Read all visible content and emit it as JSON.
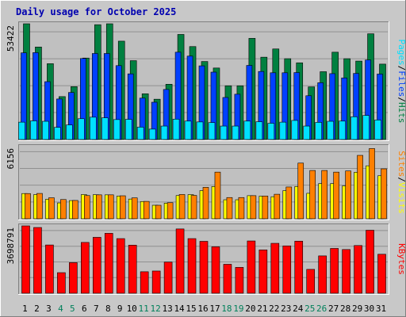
{
  "chart_data": [
    {
      "type": "bar",
      "title": "Daily usage for October 2025",
      "categories": [
        "1",
        "2",
        "3",
        "4",
        "5",
        "6",
        "7",
        "8",
        "9",
        "10",
        "11",
        "12",
        "13",
        "14",
        "15",
        "16",
        "17",
        "18",
        "19",
        "20",
        "21",
        "22",
        "23",
        "24",
        "25",
        "26",
        "27",
        "28",
        "29",
        "30",
        "31"
      ],
      "weekend_days": [
        "4",
        "5",
        "11",
        "12",
        "18",
        "19",
        "25",
        "26"
      ],
      "ymax_label": "53422",
      "ymax": 53422,
      "right_label_parts": [
        "Pages",
        "/",
        "Files",
        "/",
        "Hits"
      ],
      "series": [
        {
          "name": "Hits",
          "color": "#008040",
          "values": [
            53422,
            42700,
            35000,
            19800,
            24400,
            37600,
            53000,
            53422,
            45400,
            36400,
            21100,
            18600,
            25500,
            48500,
            42900,
            36000,
            33000,
            24800,
            24800,
            46700,
            38000,
            41800,
            37300,
            35400,
            24300,
            31300,
            40300,
            37300,
            36200,
            48800,
            34800
          ]
        },
        {
          "name": "Files",
          "color": "#0040ff",
          "values": [
            40000,
            40100,
            26700,
            18700,
            21700,
            37400,
            39700,
            39700,
            34100,
            30300,
            19100,
            17200,
            23100,
            40300,
            38500,
            34000,
            31100,
            19400,
            20900,
            34200,
            31400,
            30800,
            30800,
            30900,
            20200,
            26200,
            30400,
            28400,
            30500,
            36700,
            30200
          ]
        },
        {
          "name": "Pages",
          "color": "#00e0ff",
          "values": [
            8000,
            8600,
            8400,
            5600,
            6700,
            9600,
            10300,
            10000,
            9200,
            9300,
            5700,
            4800,
            6200,
            9400,
            8500,
            8100,
            7800,
            6200,
            6200,
            8500,
            8200,
            7500,
            8000,
            8800,
            6200,
            7900,
            8400,
            8500,
            10500,
            11100,
            9000
          ]
        }
      ]
    },
    {
      "type": "bar",
      "ymax_label": "6156",
      "ymax": 6156,
      "right_label_parts": [
        "Sites",
        "/",
        "Visits"
      ],
      "series": [
        {
          "name": "Visits",
          "color": "#ffff00",
          "values": [
            2150,
            2060,
            1660,
            1350,
            1550,
            2060,
            2050,
            2040,
            1930,
            1680,
            1470,
            1150,
            1330,
            1980,
            2060,
            2400,
            2750,
            1620,
            1620,
            1970,
            1930,
            1880,
            2400,
            2750,
            2170,
            3000,
            3000,
            2800,
            3970,
            4520,
            3670
          ]
        },
        {
          "name": "Sites",
          "color": "#ff8000",
          "values": [
            2150,
            2160,
            1790,
            1640,
            1560,
            1980,
            2040,
            2040,
            1960,
            1780,
            1480,
            1150,
            1370,
            2070,
            1990,
            2680,
            3980,
            1810,
            1810,
            1970,
            1940,
            2090,
            2710,
            4750,
            4120,
            4120,
            3980,
            4080,
            5410,
            5990,
            4260
          ]
        }
      ]
    },
    {
      "type": "bar",
      "ymax_label": "3698791",
      "ymax": 3698791,
      "right_label_parts": [
        "KBytes"
      ],
      "series": [
        {
          "name": "KBytes",
          "color": "#ff0000",
          "values": [
            3698791,
            3610000,
            2650000,
            1130000,
            1680000,
            2790000,
            3070000,
            3290000,
            3000000,
            2640000,
            1180000,
            1220000,
            1710000,
            3530000,
            3000000,
            2850000,
            2550000,
            1590000,
            1420000,
            2870000,
            2380000,
            2740000,
            2600000,
            2860000,
            1310000,
            2050000,
            2460000,
            2400000,
            2620000,
            3460000,
            2140000
          ]
        }
      ]
    }
  ]
}
